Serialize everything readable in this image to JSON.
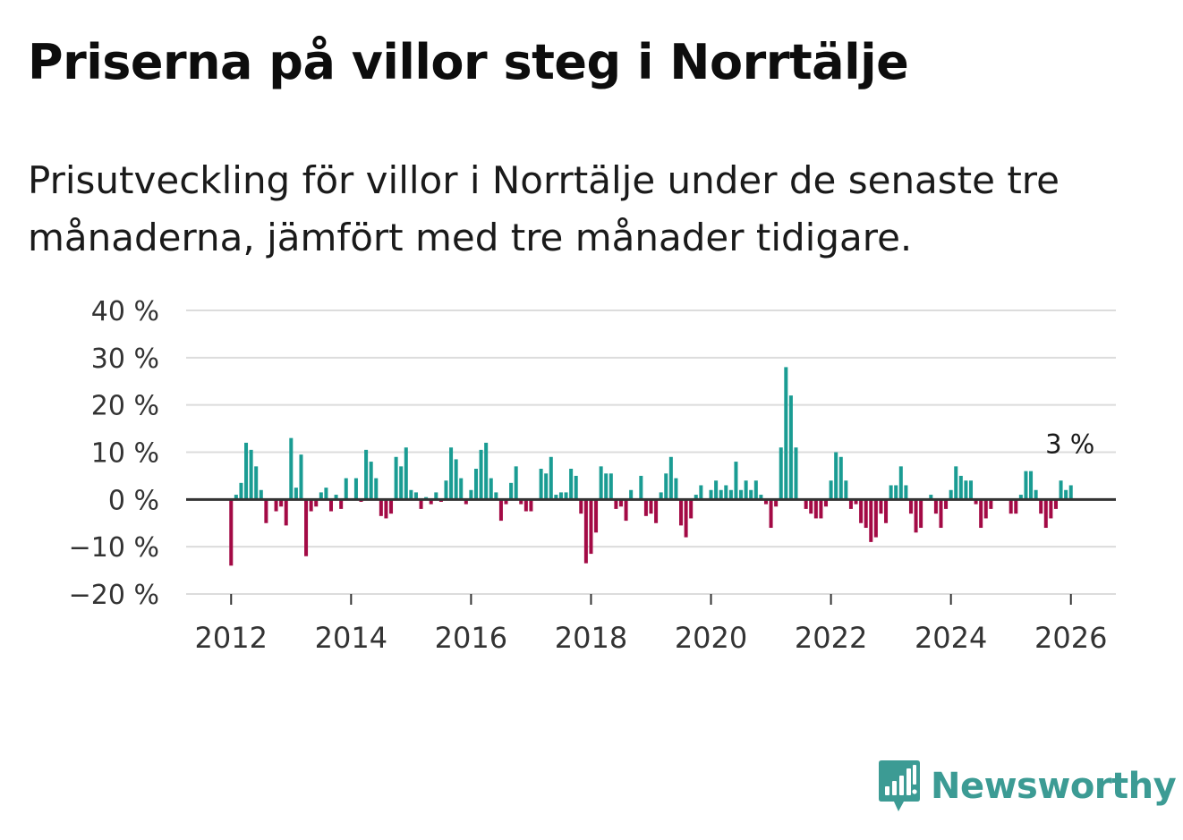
{
  "header": {
    "title": "Priserna på villor steg i Norrtälje",
    "subtitle": "Prisutveckling för villor i Norrtälje under de senaste tre månaderna, jämfört med tre månader tidigare."
  },
  "brand": {
    "name": "Newsworthy",
    "icon": "newsworthy-logo-icon",
    "color": "#3c9b94"
  },
  "colors": {
    "positive": "#1a9c93",
    "negative": "#a30a45",
    "grid": "#dcdcdc",
    "zero": "#333333"
  },
  "chart_data": {
    "type": "bar",
    "title": "Priserna på villor steg i Norrtälje",
    "xlabel": "",
    "ylabel": "",
    "ylim": [
      -20,
      40
    ],
    "xlim": [
      2011.25,
      2026.75
    ],
    "y_ticks": [
      40,
      30,
      20,
      10,
      0,
      -10,
      -20
    ],
    "y_tick_labels": [
      "40 %",
      "30 %",
      "20 %",
      "10 %",
      "0 %",
      "−10 %",
      "−20 %"
    ],
    "x_ticks": [
      2012,
      2014,
      2016,
      2018,
      2020,
      2022,
      2024,
      2026
    ],
    "x_tick_labels": [
      "2012",
      "2014",
      "2016",
      "2018",
      "2020",
      "2022",
      "2024",
      "2026"
    ],
    "grid": true,
    "start": "2012-01",
    "frequency": "monthly",
    "unit": "%",
    "last_value_label": "3 %",
    "values": [
      -14,
      1,
      3.5,
      12,
      10.5,
      7,
      2,
      -5,
      0,
      -2.5,
      -1.5,
      -5.5,
      13,
      2.5,
      9.5,
      -12,
      -2.5,
      -1.5,
      1.5,
      2.5,
      -2.5,
      1,
      -2,
      4.5,
      0,
      4.5,
      -0.5,
      10.5,
      8,
      4.5,
      -3.5,
      -4,
      -3,
      9,
      7,
      11,
      2,
      1.5,
      -2,
      0.5,
      -1,
      1.5,
      -0.5,
      4,
      11,
      8.5,
      4.5,
      -1,
      2,
      6.5,
      10.5,
      12,
      4.5,
      1.5,
      -4.5,
      -1,
      3.5,
      7,
      -1,
      -2.5,
      -2.5,
      0,
      6.5,
      5.5,
      9,
      1,
      1.5,
      1.5,
      6.5,
      5,
      -3,
      -13.5,
      -11.5,
      -7,
      7,
      5.5,
      5.5,
      -2,
      -1.5,
      -4.5,
      2,
      0,
      5,
      -3.5,
      -3,
      -5,
      1.5,
      5.5,
      9,
      4.5,
      -5.5,
      -8,
      -4,
      1,
      3,
      0,
      2,
      4,
      2,
      3,
      2,
      8,
      2,
      4,
      2,
      4,
      1,
      -1,
      -6,
      -1.5,
      11,
      28,
      22,
      11,
      0,
      -2,
      -3,
      -4,
      -4,
      -1.5,
      4,
      10,
      9,
      4,
      -2,
      -1,
      -5,
      -6,
      -9,
      -8,
      -3,
      -5,
      3,
      3,
      7,
      3,
      -3,
      -7,
      -6,
      0,
      1,
      -3,
      -6,
      -2,
      2,
      7,
      5,
      4,
      4,
      -1,
      -6,
      -4,
      -2,
      0,
      0,
      0,
      -3,
      -3,
      1,
      6,
      6,
      2,
      -3,
      -6,
      -4,
      -2,
      4,
      2,
      3
    ]
  }
}
